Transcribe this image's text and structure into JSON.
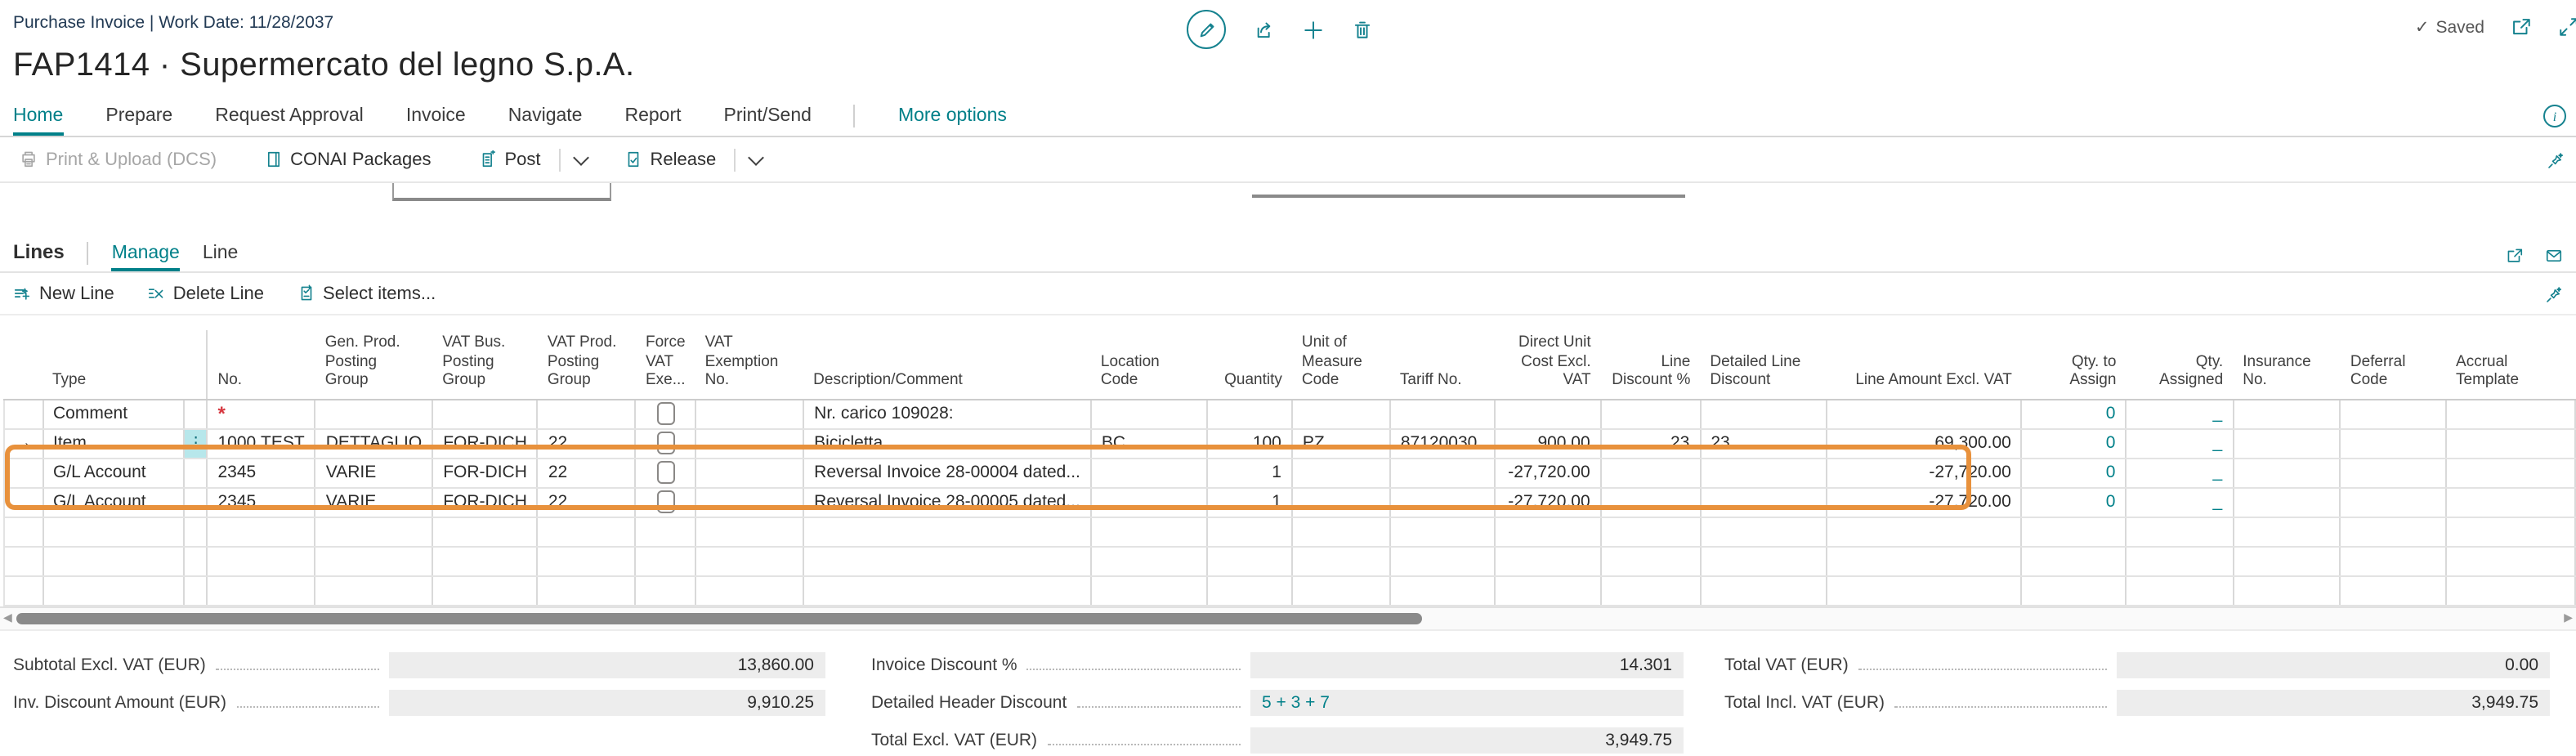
{
  "page": {
    "caption": "Purchase Invoice | Work Date: 11/28/2037",
    "title": "FAP1414 · Supermercato del legno S.p.A.",
    "saved": "Saved"
  },
  "ribbon": {
    "tabs": [
      {
        "label": "Home",
        "active": true
      },
      {
        "label": "Prepare"
      },
      {
        "label": "Request Approval"
      },
      {
        "label": "Invoice"
      },
      {
        "label": "Navigate"
      },
      {
        "label": "Report"
      },
      {
        "label": "Print/Send"
      }
    ],
    "more": "More options",
    "actions": [
      {
        "label": "Print & Upload (DCS)",
        "disabled": true
      },
      {
        "label": "CONAI Packages"
      },
      {
        "label": "Post",
        "split": true
      },
      {
        "label": "Release",
        "split": true
      }
    ]
  },
  "lines": {
    "title": "Lines",
    "tabs": [
      {
        "label": "Manage",
        "active": true
      },
      {
        "label": "Line"
      }
    ],
    "actions": [
      {
        "label": "New Line"
      },
      {
        "label": "Delete Line"
      },
      {
        "label": "Select items..."
      }
    ]
  },
  "table": {
    "columns": [
      {
        "key": "ind",
        "label": ""
      },
      {
        "key": "type",
        "label": "Type"
      },
      {
        "key": "menu",
        "label": ""
      },
      {
        "key": "no",
        "label": "No."
      },
      {
        "key": "gen_prod",
        "label": "Gen. Prod. Posting Group"
      },
      {
        "key": "vat_bus",
        "label": "VAT Bus. Posting Group"
      },
      {
        "key": "vat_prod",
        "label": "VAT Prod. Posting Group"
      },
      {
        "key": "force_vat",
        "label": "Force VAT Exe..."
      },
      {
        "key": "vat_exempt",
        "label": "VAT Exemption No."
      },
      {
        "key": "desc",
        "label": "Description/Comment"
      },
      {
        "key": "loc",
        "label": "Location Code"
      },
      {
        "key": "qty",
        "label": "Quantity"
      },
      {
        "key": "uom",
        "label": "Unit of Measure Code"
      },
      {
        "key": "tariff",
        "label": "Tariff No."
      },
      {
        "key": "unit_cost",
        "label": "Direct Unit Cost Excl. VAT"
      },
      {
        "key": "line_disc",
        "label": "Line Discount %"
      },
      {
        "key": "det_disc",
        "label": "Detailed Line Discount"
      },
      {
        "key": "line_amt",
        "label": "Line Amount Excl. VAT"
      },
      {
        "key": "qty_assign",
        "label": "Qty. to Assign"
      },
      {
        "key": "qty_assigned",
        "label": "Qty. Assigned"
      },
      {
        "key": "insurance",
        "label": "Insurance No."
      },
      {
        "key": "deferral",
        "label": "Deferral Code"
      },
      {
        "key": "accrual",
        "label": "Accrual Template"
      }
    ],
    "rows": [
      {
        "checkbox": true,
        "cells": {
          "type": "Comment",
          "no": "*",
          "desc": "Nr. carico 109028:",
          "qty_assign": "0",
          "qty_assigned": "_"
        }
      },
      {
        "indicator": true,
        "menu": true,
        "checkbox": true,
        "cells": {
          "type": "Item",
          "no": "1000.TEST",
          "gen_prod": "DETTAGLIO",
          "vat_bus": "FOR-DICH",
          "vat_prod": "22",
          "desc": "Bicicletta",
          "loc": "BC",
          "qty": "100",
          "uom": "PZ",
          "tariff": "87120030",
          "unit_cost": "900.00",
          "line_disc": "23",
          "det_disc": "23",
          "line_amt": "69,300.00",
          "qty_assign": "0",
          "qty_assigned": "_"
        }
      },
      {
        "checkbox": true,
        "highlighted": true,
        "cells": {
          "type": "G/L Account",
          "no": "2345",
          "gen_prod": "VARIE",
          "vat_bus": "FOR-DICH",
          "vat_prod": "22",
          "desc": "Reversal Invoice 28-00004 dated...",
          "qty": "1",
          "unit_cost": "-27,720.00",
          "line_amt": "-27,720.00",
          "qty_assign": "0",
          "qty_assigned": "_"
        }
      },
      {
        "checkbox": true,
        "highlighted": true,
        "cells": {
          "type": "G/L Account",
          "no": "2345",
          "gen_prod": "VARIE",
          "vat_bus": "FOR-DICH",
          "vat_prod": "22",
          "desc": "Reversal Invoice 28-00005 dated...",
          "qty": "1",
          "unit_cost": "-27,720.00",
          "line_amt": "-27,720.00",
          "qty_assign": "0",
          "qty_assigned": "_"
        }
      },
      {
        "empty": true,
        "cells": {}
      },
      {
        "empty": true,
        "cells": {}
      },
      {
        "empty": true,
        "cells": {}
      }
    ]
  },
  "totals": {
    "col1": [
      {
        "label": "Subtotal Excl. VAT (EUR)",
        "value": "13,860.00"
      },
      {
        "label": "Inv. Discount Amount (EUR)",
        "value": "9,910.25"
      }
    ],
    "col2": [
      {
        "label": "Invoice Discount %",
        "value": "14.301"
      },
      {
        "label": "Detailed Header Discount",
        "value": "5 + 3 + 7",
        "link": true
      },
      {
        "label": "Total Excl. VAT (EUR)",
        "value": "3,949.75"
      }
    ],
    "col3": [
      {
        "label": "Total VAT (EUR)",
        "value": "0.00"
      },
      {
        "label": "Total Incl. VAT (EUR)",
        "value": "3,949.75"
      }
    ]
  },
  "colors": {
    "accent": "#008089",
    "icon": "#15828f",
    "highlight_orange": "#e8913c",
    "required_red": "#d6373f",
    "field_bg": "#ededed",
    "selected_cell": "#b7e7eb"
  }
}
